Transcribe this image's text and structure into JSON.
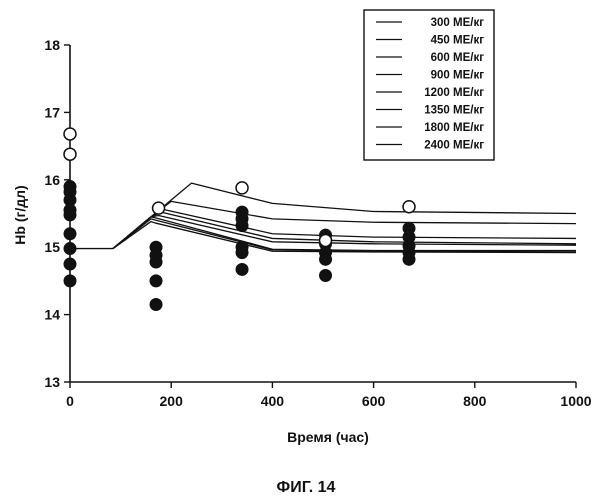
{
  "figure_caption": "ФИГ. 14",
  "chart_data": {
    "type": "scatter",
    "title": "",
    "xlabel": "Время (час)",
    "ylabel": "Hb (г/дл)",
    "xlim": [
      0,
      1000
    ],
    "ylim": [
      13,
      18
    ],
    "xticks": [
      0,
      200,
      400,
      600,
      800,
      1000
    ],
    "yticks": [
      13,
      14,
      15,
      16,
      17,
      18
    ],
    "grid": false,
    "legend_position": "top-right",
    "legend": [
      "300 МЕ/кг",
      "450 МЕ/кг",
      "600 МЕ/кг",
      "900 МЕ/кг",
      "1200 МЕ/кг",
      "1350 МЕ/кг",
      "1800 МЕ/кг",
      "2400 МЕ/кг"
    ],
    "filled_points": [
      {
        "x": 0,
        "y": 15.9
      },
      {
        "x": 0,
        "y": 15.82
      },
      {
        "x": 0,
        "y": 15.7
      },
      {
        "x": 0,
        "y": 15.55
      },
      {
        "x": 0,
        "y": 15.48
      },
      {
        "x": 0,
        "y": 15.2
      },
      {
        "x": 0,
        "y": 14.98
      },
      {
        "x": 0,
        "y": 14.75
      },
      {
        "x": 0,
        "y": 14.5
      },
      {
        "x": 170,
        "y": 15.0
      },
      {
        "x": 170,
        "y": 14.88
      },
      {
        "x": 170,
        "y": 14.78
      },
      {
        "x": 170,
        "y": 14.5
      },
      {
        "x": 170,
        "y": 14.15
      },
      {
        "x": 340,
        "y": 15.52
      },
      {
        "x": 340,
        "y": 15.42
      },
      {
        "x": 340,
        "y": 15.32
      },
      {
        "x": 340,
        "y": 15.0
      },
      {
        "x": 340,
        "y": 14.92
      },
      {
        "x": 340,
        "y": 14.67
      },
      {
        "x": 505,
        "y": 15.18
      },
      {
        "x": 505,
        "y": 15.05
      },
      {
        "x": 505,
        "y": 14.92
      },
      {
        "x": 505,
        "y": 14.82
      },
      {
        "x": 505,
        "y": 14.58
      },
      {
        "x": 670,
        "y": 15.28
      },
      {
        "x": 670,
        "y": 15.15
      },
      {
        "x": 670,
        "y": 15.02
      },
      {
        "x": 670,
        "y": 14.92
      },
      {
        "x": 670,
        "y": 14.82
      }
    ],
    "open_points": [
      {
        "x": 0,
        "y": 16.68
      },
      {
        "x": 0,
        "y": 16.38
      },
      {
        "x": 175,
        "y": 15.58
      },
      {
        "x": 340,
        "y": 15.88
      },
      {
        "x": 505,
        "y": 15.1
      },
      {
        "x": 670,
        "y": 15.6
      }
    ],
    "baseline": [
      [
        0,
        14.98
      ],
      [
        85,
        14.98
      ]
    ],
    "series": [
      {
        "values": [
          [
            85,
            14.98
          ],
          [
            160,
            15.45
          ],
          [
            240,
            15.95
          ],
          [
            400,
            15.65
          ],
          [
            600,
            15.53
          ],
          [
            1000,
            15.5
          ]
        ]
      },
      {
        "values": [
          [
            85,
            14.98
          ],
          [
            160,
            15.45
          ],
          [
            200,
            15.68
          ],
          [
            400,
            15.42
          ],
          [
            600,
            15.37
          ],
          [
            1000,
            15.35
          ]
        ]
      },
      {
        "values": [
          [
            85,
            14.98
          ],
          [
            160,
            15.45
          ],
          [
            185,
            15.56
          ],
          [
            400,
            15.2
          ],
          [
            600,
            15.15
          ],
          [
            1000,
            15.13
          ]
        ]
      },
      {
        "values": [
          [
            85,
            14.98
          ],
          [
            160,
            15.45
          ],
          [
            180,
            15.52
          ],
          [
            400,
            15.13
          ],
          [
            600,
            15.08
          ],
          [
            1000,
            15.05
          ]
        ]
      },
      {
        "values": [
          [
            85,
            14.98
          ],
          [
            160,
            15.45
          ],
          [
            175,
            15.47
          ],
          [
            400,
            15.08
          ],
          [
            600,
            15.05
          ],
          [
            1000,
            15.03
          ]
        ]
      },
      {
        "values": [
          [
            85,
            14.98
          ],
          [
            160,
            15.45
          ],
          [
            172,
            15.43
          ],
          [
            400,
            14.97
          ],
          [
            600,
            14.95
          ],
          [
            1000,
            14.95
          ]
        ]
      },
      {
        "values": [
          [
            85,
            14.98
          ],
          [
            160,
            15.42
          ],
          [
            170,
            15.4
          ],
          [
            400,
            14.96
          ],
          [
            600,
            14.94
          ],
          [
            1000,
            14.93
          ]
        ]
      },
      {
        "values": [
          [
            85,
            14.98
          ],
          [
            160,
            15.38
          ],
          [
            168,
            15.36
          ],
          [
            400,
            14.94
          ],
          [
            600,
            14.93
          ],
          [
            1000,
            14.92
          ]
        ]
      }
    ]
  }
}
